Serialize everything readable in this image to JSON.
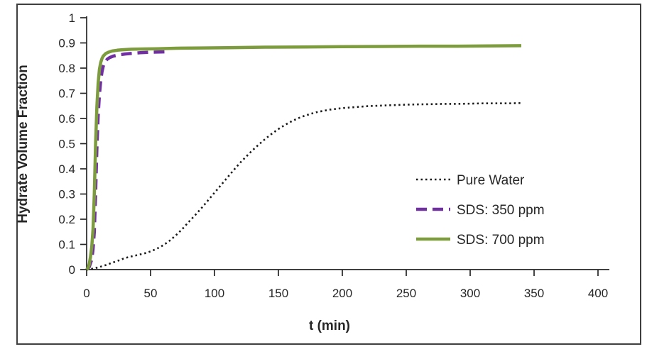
{
  "figure": {
    "background": "#ffffff",
    "border_color": "#3f3f3f",
    "axis_color": "#262626",
    "text_color": "#262626"
  },
  "chart_data": {
    "type": "line",
    "title": "",
    "xlabel": "t (min)",
    "ylabel": "Hydrate Volume Fraction",
    "xlim": [
      0,
      400
    ],
    "ylim": [
      0,
      1
    ],
    "xticks": [
      0,
      50,
      100,
      150,
      200,
      250,
      300,
      350,
      400
    ],
    "yticks": [
      0,
      0.1,
      0.2,
      0.3,
      0.4,
      0.5,
      0.6,
      0.7,
      0.8,
      0.9,
      1
    ],
    "grid": false,
    "legend_position": "middle-right",
    "series": [
      {
        "name": "Pure Water",
        "color": "#1a1a1a",
        "style": "dotted",
        "points": [
          [
            0,
            0
          ],
          [
            5,
            0.004
          ],
          [
            10,
            0.01
          ],
          [
            15,
            0.018
          ],
          [
            20,
            0.027
          ],
          [
            25,
            0.036
          ],
          [
            30,
            0.046
          ],
          [
            35,
            0.052
          ],
          [
            40,
            0.058
          ],
          [
            45,
            0.064
          ],
          [
            50,
            0.072
          ],
          [
            55,
            0.083
          ],
          [
            60,
            0.097
          ],
          [
            65,
            0.115
          ],
          [
            70,
            0.137
          ],
          [
            75,
            0.162
          ],
          [
            80,
            0.19
          ],
          [
            85,
            0.217
          ],
          [
            90,
            0.245
          ],
          [
            95,
            0.275
          ],
          [
            100,
            0.305
          ],
          [
            105,
            0.335
          ],
          [
            110,
            0.365
          ],
          [
            115,
            0.395
          ],
          [
            120,
            0.424
          ],
          [
            125,
            0.45
          ],
          [
            130,
            0.475
          ],
          [
            135,
            0.498
          ],
          [
            140,
            0.52
          ],
          [
            145,
            0.54
          ],
          [
            150,
            0.558
          ],
          [
            155,
            0.574
          ],
          [
            160,
            0.588
          ],
          [
            165,
            0.6
          ],
          [
            170,
            0.61
          ],
          [
            175,
            0.618
          ],
          [
            180,
            0.625
          ],
          [
            185,
            0.63
          ],
          [
            190,
            0.635
          ],
          [
            195,
            0.638
          ],
          [
            200,
            0.641
          ],
          [
            210,
            0.645
          ],
          [
            220,
            0.649
          ],
          [
            230,
            0.651
          ],
          [
            240,
            0.653
          ],
          [
            250,
            0.655
          ],
          [
            260,
            0.656
          ],
          [
            270,
            0.657
          ],
          [
            280,
            0.658
          ],
          [
            290,
            0.658
          ],
          [
            300,
            0.659
          ],
          [
            310,
            0.66
          ],
          [
            320,
            0.66
          ],
          [
            330,
            0.66
          ],
          [
            340,
            0.661
          ]
        ]
      },
      {
        "name": "SDS: 350 ppm",
        "color": "#7030A0",
        "style": "dashed",
        "points": [
          [
            0,
            0
          ],
          [
            2,
            0.01
          ],
          [
            4,
            0.04
          ],
          [
            5,
            0.08
          ],
          [
            6,
            0.15
          ],
          [
            7,
            0.3
          ],
          [
            8,
            0.48
          ],
          [
            9,
            0.61
          ],
          [
            10,
            0.695
          ],
          [
            11,
            0.75
          ],
          [
            12,
            0.785
          ],
          [
            13,
            0.808
          ],
          [
            14,
            0.822
          ],
          [
            16,
            0.835
          ],
          [
            18,
            0.842
          ],
          [
            21,
            0.848
          ],
          [
            25,
            0.852
          ],
          [
            30,
            0.856
          ],
          [
            36,
            0.859
          ],
          [
            42,
            0.861
          ],
          [
            50,
            0.863
          ],
          [
            58,
            0.864
          ],
          [
            65,
            0.865
          ]
        ]
      },
      {
        "name": "SDS: 700 ppm",
        "color": "#7D9C3E",
        "style": "solid",
        "points": [
          [
            0,
            0
          ],
          [
            1,
            0.005
          ],
          [
            2,
            0.02
          ],
          [
            3,
            0.05
          ],
          [
            4,
            0.09
          ],
          [
            5,
            0.16
          ],
          [
            6,
            0.3
          ],
          [
            7,
            0.5
          ],
          [
            8,
            0.645
          ],
          [
            9,
            0.74
          ],
          [
            10,
            0.795
          ],
          [
            11,
            0.822
          ],
          [
            12,
            0.838
          ],
          [
            13,
            0.848
          ],
          [
            15,
            0.858
          ],
          [
            17,
            0.863
          ],
          [
            20,
            0.868
          ],
          [
            24,
            0.871
          ],
          [
            28,
            0.873
          ],
          [
            35,
            0.875
          ],
          [
            45,
            0.876
          ],
          [
            55,
            0.877
          ],
          [
            70,
            0.879
          ],
          [
            90,
            0.88
          ],
          [
            110,
            0.881
          ],
          [
            140,
            0.883
          ],
          [
            170,
            0.884
          ],
          [
            200,
            0.885
          ],
          [
            230,
            0.886
          ],
          [
            260,
            0.887
          ],
          [
            290,
            0.887
          ],
          [
            315,
            0.888
          ],
          [
            340,
            0.889
          ]
        ]
      }
    ]
  }
}
